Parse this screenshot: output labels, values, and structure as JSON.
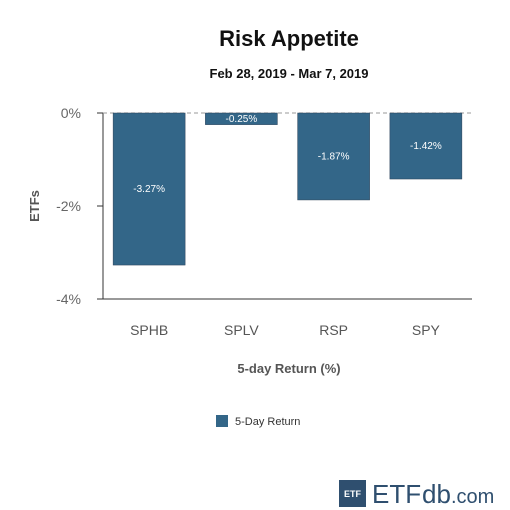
{
  "chart_data": {
    "type": "bar",
    "title": "Risk Appetite",
    "subtitle": "Feb 28, 2019 - Mar 7, 2019",
    "xlabel": "5-day Return (%)",
    "ylabel": "ETFs",
    "categories": [
      "SPHB",
      "SPLV",
      "RSP",
      "SPY"
    ],
    "series": [
      {
        "name": "5-Day Return",
        "values": [
          -3.27,
          -0.25,
          -1.87,
          -1.42
        ],
        "labels": [
          "-3.27%",
          "-0.25%",
          "-1.87%",
          "-1.42%"
        ],
        "color": "#336688"
      }
    ],
    "ylim": [
      -4,
      0
    ],
    "yticks": [
      0,
      -2,
      -4
    ],
    "ytick_labels": [
      "0%",
      "-2%",
      "-4%"
    ],
    "legend_position": "bottom-center",
    "grid": false
  },
  "colors": {
    "bar": "#336688",
    "logo": "#2f4f6f",
    "baseline": "#999999",
    "axis": "#333333"
  },
  "branding": {
    "logo_box_text": "ETF",
    "logo_etf": "ETF",
    "logo_db": "db",
    "logo_com": ".com"
  }
}
